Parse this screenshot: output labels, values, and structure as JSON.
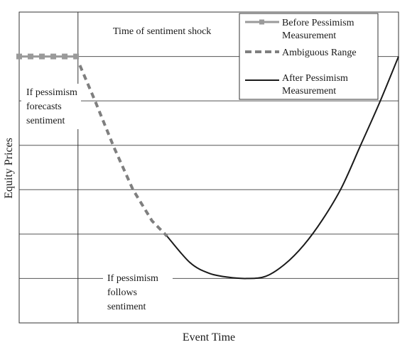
{
  "chart_data": {
    "type": "line",
    "title": "",
    "xlabel": "Event Time",
    "ylabel": "Equity Prices",
    "grid": true,
    "legend_position": "top-right",
    "xlim": [
      0,
      10
    ],
    "ylim": [
      0,
      7
    ],
    "series": [
      {
        "name": "Before Pessimism Measurement",
        "style": "gray-line-square-markers",
        "color": "#9a9a9a",
        "x": [
          0,
          0.3,
          0.6,
          0.9,
          1.2,
          1.5
        ],
        "y": [
          6,
          6,
          6,
          6,
          6,
          6
        ]
      },
      {
        "name": "Ambiguous Range",
        "style": "dashed",
        "color": "#7f7f7f",
        "x": [
          1.6,
          2.0,
          2.5,
          3.0,
          3.5,
          3.9
        ],
        "y": [
          5.8,
          5.0,
          3.95,
          3.0,
          2.3,
          1.95
        ]
      },
      {
        "name": "After Pessimism Measurement",
        "style": "solid",
        "color": "#1a1a1a",
        "x": [
          3.9,
          4.5,
          5.0,
          5.5,
          6.0,
          6.5,
          7.0,
          7.5,
          8.0,
          8.5,
          9.0,
          9.5,
          10
        ],
        "y": [
          1.95,
          1.36,
          1.12,
          1.03,
          1.0,
          1.05,
          1.32,
          1.75,
          2.33,
          3.05,
          4.0,
          4.96,
          6.0
        ]
      }
    ],
    "shock_x": 1.55,
    "annotations": [
      {
        "text": "Time of sentiment shock"
      },
      {
        "text": [
          "If pessimism",
          "forecasts",
          "sentiment"
        ]
      },
      {
        "text": [
          "If pessimism",
          "follows",
          "sentiment"
        ]
      }
    ]
  },
  "legend": {
    "items": [
      {
        "label_lines": [
          "Before Pessimism",
          "Measurement"
        ],
        "swatch": "gray-square-line"
      },
      {
        "label_lines": [
          "Ambiguous Range"
        ],
        "swatch": "dashed-line"
      },
      {
        "label_lines": [
          "After Pessimism",
          "Measurement"
        ],
        "swatch": "solid-line"
      }
    ]
  }
}
